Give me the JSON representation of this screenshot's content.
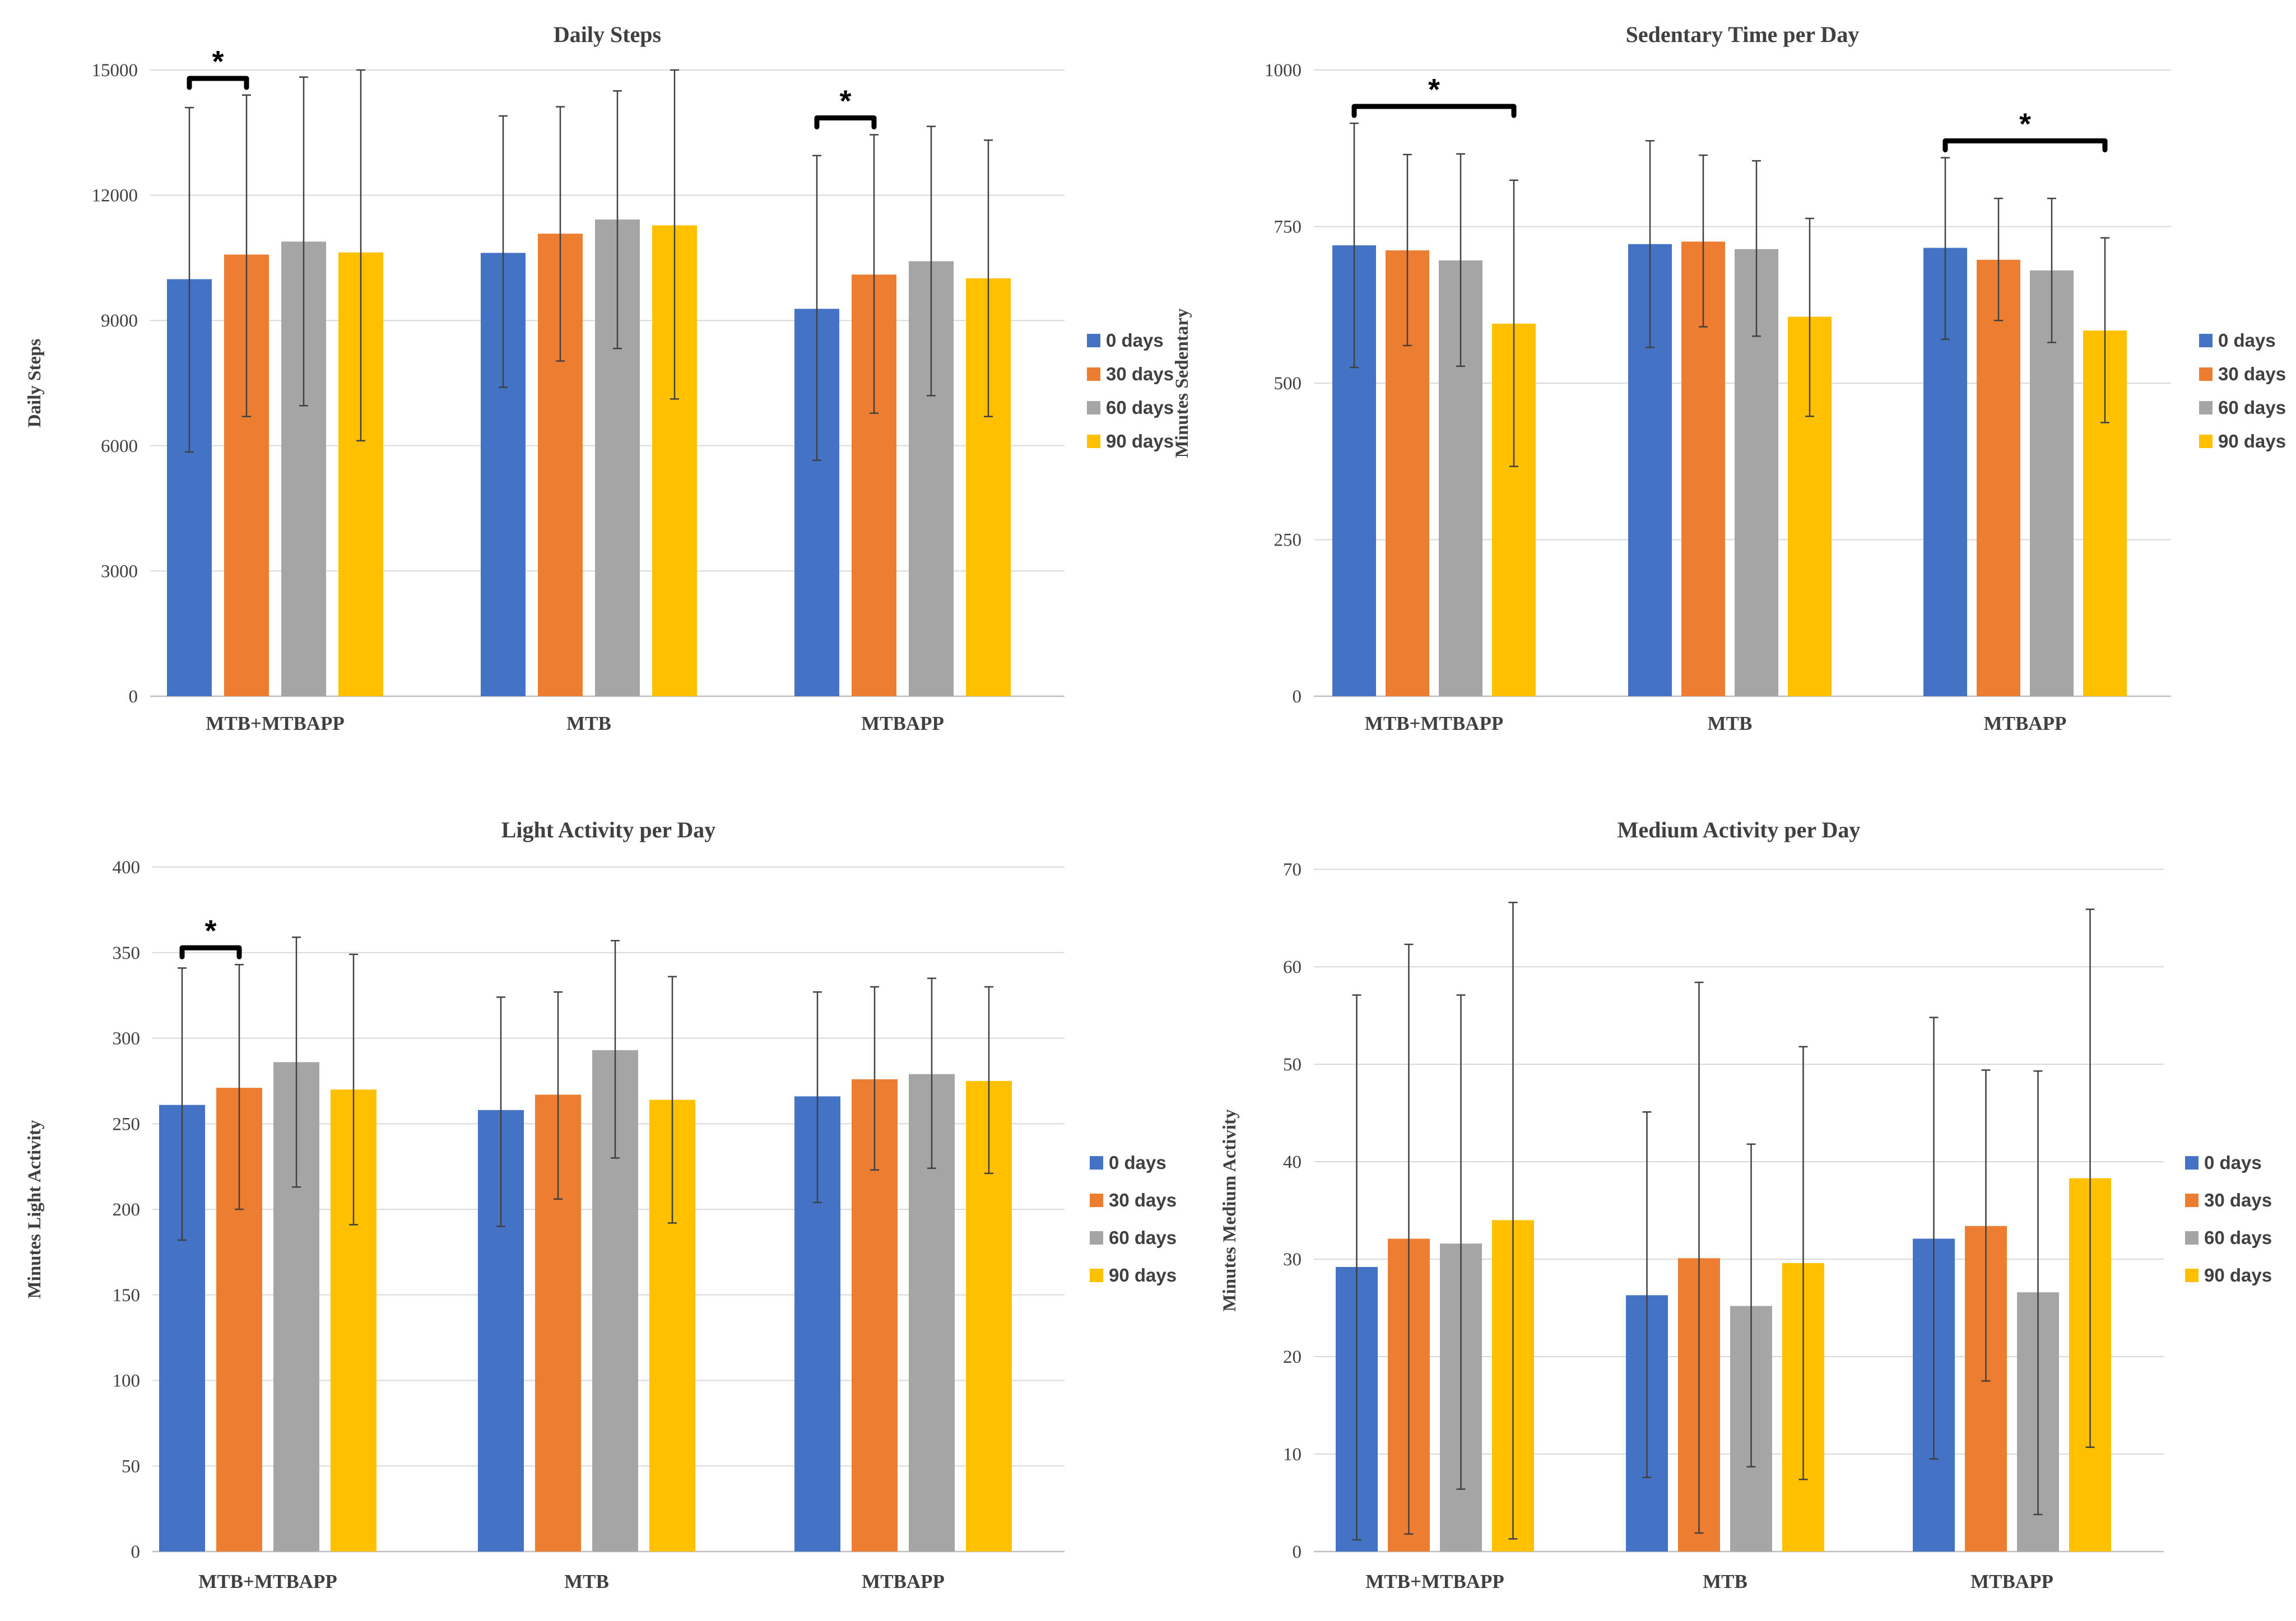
{
  "legend": [
    "0 days",
    "30 days",
    "60 days",
    "90 days"
  ],
  "colors": [
    "#4472c4",
    "#ed7d31",
    "#a5a5a5",
    "#ffc000"
  ],
  "chart_data": [
    {
      "type": "bar",
      "title": "Daily Steps",
      "ylabel": "Daily Steps",
      "xlabel": "",
      "categories": [
        "MTB+MTBAPP",
        "MTB",
        "MTBAPP"
      ],
      "ylim": [
        0,
        15000
      ],
      "yticks": [
        0,
        3000,
        6000,
        9000,
        12000,
        15000
      ],
      "series": [
        {
          "name": "0 days",
          "values": [
            9990,
            10620,
            9280
          ],
          "err_low": [
            5850,
            7400,
            5650
          ],
          "err_high": [
            14100,
            13900,
            12950
          ]
        },
        {
          "name": "30 days",
          "values": [
            10580,
            11080,
            10100
          ],
          "err_low": [
            6700,
            8030,
            6780
          ],
          "err_high": [
            14400,
            14120,
            13450
          ]
        },
        {
          "name": "60 days",
          "values": [
            10890,
            11420,
            10420
          ],
          "err_low": [
            6960,
            8330,
            7200
          ],
          "err_high": [
            14830,
            14500,
            13650
          ]
        },
        {
          "name": "90 days",
          "values": [
            10630,
            11280,
            10010
          ],
          "err_low": [
            6120,
            7120,
            6700
          ],
          "err_high": [
            15000,
            15000,
            13320
          ]
        }
      ],
      "significance": [
        {
          "category": 0,
          "from": 0,
          "to": 1,
          "label": "*"
        },
        {
          "category": 2,
          "from": 0,
          "to": 1,
          "label": "*"
        }
      ]
    },
    {
      "type": "bar",
      "title": "Sedentary Time per Day",
      "ylabel": "Minutes Sedentary",
      "xlabel": "",
      "categories": [
        "MTB+MTBAPP",
        "MTB",
        "MTBAPP"
      ],
      "ylim": [
        0,
        1000
      ],
      "yticks": [
        0,
        250,
        500,
        750,
        1000
      ],
      "series": [
        {
          "name": "0 days",
          "values": [
            720,
            722,
            716
          ],
          "err_low": [
            525,
            557,
            570
          ],
          "err_high": [
            915,
            887,
            860
          ]
        },
        {
          "name": "30 days",
          "values": [
            712,
            726,
            697
          ],
          "err_low": [
            560,
            590,
            600
          ],
          "err_high": [
            865,
            864,
            795
          ]
        },
        {
          "name": "60 days",
          "values": [
            696,
            714,
            680
          ],
          "err_low": [
            527,
            575,
            565
          ],
          "err_high": [
            866,
            855,
            795
          ]
        },
        {
          "name": "90 days",
          "values": [
            595,
            606,
            584
          ],
          "err_low": [
            367,
            447,
            437
          ],
          "err_high": [
            824,
            763,
            732
          ]
        }
      ],
      "significance": [
        {
          "category": 0,
          "from": 0,
          "to": 3,
          "label": "*"
        },
        {
          "category": 2,
          "from": 0,
          "to": 3,
          "label": "*"
        }
      ]
    },
    {
      "type": "bar",
      "title": "Light Activity per Day",
      "ylabel": "Minutes Light Activity",
      "xlabel": "",
      "categories": [
        "MTB+MTBAPP",
        "MTB",
        "MTBAPP"
      ],
      "ylim": [
        0,
        400
      ],
      "yticks": [
        0,
        50,
        100,
        150,
        200,
        250,
        300,
        350,
        400
      ],
      "series": [
        {
          "name": "0 days",
          "values": [
            261,
            258,
            266
          ],
          "err_low": [
            182,
            190,
            204
          ],
          "err_high": [
            341,
            324,
            327
          ]
        },
        {
          "name": "30 days",
          "values": [
            271,
            267,
            276
          ],
          "err_low": [
            200,
            206,
            223
          ],
          "err_high": [
            343,
            327,
            330
          ]
        },
        {
          "name": "60 days",
          "values": [
            286,
            293,
            279
          ],
          "err_low": [
            213,
            230,
            224
          ],
          "err_high": [
            359,
            357,
            335
          ]
        },
        {
          "name": "90 days",
          "values": [
            270,
            264,
            275
          ],
          "err_low": [
            191,
            192,
            221
          ],
          "err_high": [
            349,
            336,
            330
          ]
        }
      ],
      "significance": [
        {
          "category": 0,
          "from": 0,
          "to": 1,
          "label": "*"
        }
      ]
    },
    {
      "type": "bar",
      "title": "Medium Activity per Day",
      "ylabel": "Minutes Medium Activity",
      "xlabel": "",
      "categories": [
        "MTB+MTBAPP",
        "MTB",
        "MTBAPP"
      ],
      "ylim": [
        0,
        70
      ],
      "yticks": [
        0,
        10,
        20,
        30,
        40,
        50,
        60,
        70
      ],
      "series": [
        {
          "name": "0 days",
          "values": [
            29.2,
            26.3,
            32.1
          ],
          "err_low": [
            1.2,
            7.6,
            9.5
          ],
          "err_high": [
            57.1,
            45.1,
            54.8
          ]
        },
        {
          "name": "30 days",
          "values": [
            32.1,
            30.1,
            33.4
          ],
          "err_low": [
            1.8,
            1.9,
            17.5
          ],
          "err_high": [
            62.3,
            58.4,
            49.4
          ]
        },
        {
          "name": "60 days",
          "values": [
            31.6,
            25.2,
            26.6
          ],
          "err_low": [
            6.4,
            8.7,
            3.8
          ],
          "err_high": [
            57.1,
            41.8,
            49.3
          ]
        },
        {
          "name": "90 days",
          "values": [
            34.0,
            29.6,
            38.3
          ],
          "err_low": [
            1.3,
            7.4,
            10.7
          ],
          "err_high": [
            66.6,
            51.8,
            65.9
          ]
        }
      ],
      "significance": []
    }
  ]
}
